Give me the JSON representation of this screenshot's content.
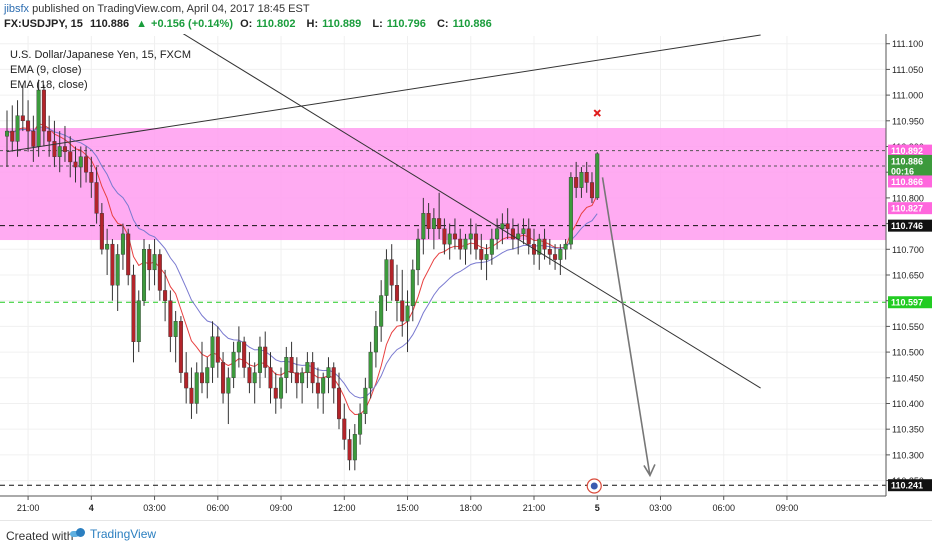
{
  "header": {
    "user": "jibsfx",
    "publish_text": "published on TradingView.com, April 04, 2017 18:45 EST",
    "symbol": "FX:USDJPY, 15",
    "last": "110.886",
    "change_arrow": "▲",
    "change": "+0.156 (+0.14%)",
    "o_label": "O:",
    "o_value": "110.802",
    "h_label": "H:",
    "h_value": "110.889",
    "l_label": "L:",
    "l_value": "110.796",
    "c_label": "C:",
    "c_value": "110.886"
  },
  "legend": {
    "title": "U.S. Dollar/Japanese Yen, 15, FXCM",
    "ema1": "EMA (9, close)",
    "ema2": "EMA (18, close)"
  },
  "footer": {
    "created": "Created with",
    "brand": "TradingView"
  },
  "colors": {
    "up": "#3c9a3c",
    "down": "#b3242a",
    "zone": "#ff9cf0",
    "ema_fast": "#e84040",
    "ema_slow": "#7a7ad0",
    "green_line": "#22cc22",
    "arrow": "#777777",
    "x_marker": "#e01b1b"
  },
  "chart_data": {
    "type": "candlestick",
    "y_range": [
      110.22,
      111.115
    ],
    "y_ticks": [
      "111.100",
      "111.050",
      "111.000",
      "110.950",
      "110.900",
      "110.850",
      "110.800",
      "110.750",
      "110.700",
      "110.650",
      "110.600",
      "110.550",
      "110.500",
      "110.450",
      "110.400",
      "110.350",
      "110.300",
      "110.250"
    ],
    "x_ticks": [
      {
        "label": "21:00",
        "bar": 4
      },
      {
        "label": "4",
        "bar": 16,
        "bold": true
      },
      {
        "label": "03:00",
        "bar": 28
      },
      {
        "label": "06:00",
        "bar": 40
      },
      {
        "label": "09:00",
        "bar": 52
      },
      {
        "label": "12:00",
        "bar": 64
      },
      {
        "label": "15:00",
        "bar": 76
      },
      {
        "label": "18:00",
        "bar": 88
      },
      {
        "label": "21:00",
        "bar": 100
      },
      {
        "label": "5",
        "bar": 112,
        "bold": true
      },
      {
        "label": "03:00",
        "bar": 124
      },
      {
        "label": "06:00",
        "bar": 136
      },
      {
        "label": "09:00",
        "bar": 148
      }
    ],
    "candles": [
      [
        110.92,
        110.97,
        110.86,
        110.93
      ],
      [
        110.93,
        110.98,
        110.89,
        110.91
      ],
      [
        110.91,
        110.99,
        110.88,
        110.96
      ],
      [
        110.96,
        111.02,
        110.93,
        110.95
      ],
      [
        110.95,
        110.99,
        110.89,
        110.93
      ],
      [
        110.93,
        110.96,
        110.87,
        110.9
      ],
      [
        110.9,
        111.03,
        110.88,
        111.01
      ],
      [
        111.01,
        111.02,
        110.9,
        110.93
      ],
      [
        110.93,
        110.96,
        110.88,
        110.91
      ],
      [
        110.91,
        110.95,
        110.86,
        110.88
      ],
      [
        110.88,
        110.93,
        110.85,
        110.9
      ],
      [
        110.9,
        110.94,
        110.87,
        110.89
      ],
      [
        110.89,
        110.92,
        110.84,
        110.87
      ],
      [
        110.87,
        110.9,
        110.83,
        110.86
      ],
      [
        110.86,
        110.9,
        110.82,
        110.88
      ],
      [
        110.88,
        110.9,
        110.83,
        110.85
      ],
      [
        110.85,
        110.88,
        110.8,
        110.83
      ],
      [
        110.83,
        110.86,
        110.75,
        110.77
      ],
      [
        110.77,
        110.79,
        110.69,
        110.7
      ],
      [
        110.7,
        110.74,
        110.65,
        110.71
      ],
      [
        110.71,
        110.72,
        110.6,
        110.63
      ],
      [
        110.63,
        110.71,
        110.58,
        110.69
      ],
      [
        110.69,
        110.75,
        110.66,
        110.73
      ],
      [
        110.73,
        110.74,
        110.63,
        110.65
      ],
      [
        110.65,
        110.67,
        110.48,
        110.52
      ],
      [
        110.52,
        110.62,
        110.5,
        110.6
      ],
      [
        110.6,
        110.72,
        110.59,
        110.7
      ],
      [
        110.7,
        110.71,
        110.62,
        110.66
      ],
      [
        110.66,
        110.72,
        110.63,
        110.69
      ],
      [
        110.69,
        110.7,
        110.6,
        110.62
      ],
      [
        110.62,
        110.66,
        110.56,
        110.6
      ],
      [
        110.6,
        110.62,
        110.5,
        110.53
      ],
      [
        110.53,
        110.58,
        110.48,
        110.56
      ],
      [
        110.56,
        110.57,
        110.44,
        110.46
      ],
      [
        110.46,
        110.5,
        110.4,
        110.43
      ],
      [
        110.43,
        110.47,
        110.37,
        110.4
      ],
      [
        110.4,
        110.48,
        110.38,
        110.46
      ],
      [
        110.46,
        110.52,
        110.42,
        110.44
      ],
      [
        110.44,
        110.49,
        110.41,
        110.47
      ],
      [
        110.47,
        110.56,
        110.44,
        110.53
      ],
      [
        110.53,
        110.55,
        110.45,
        110.48
      ],
      [
        110.48,
        110.5,
        110.4,
        110.42
      ],
      [
        110.42,
        110.47,
        110.36,
        110.45
      ],
      [
        110.45,
        110.52,
        110.43,
        110.5
      ],
      [
        110.5,
        110.55,
        110.47,
        110.52
      ],
      [
        110.52,
        110.53,
        110.45,
        110.47
      ],
      [
        110.47,
        110.5,
        110.42,
        110.44
      ],
      [
        110.44,
        110.48,
        110.4,
        110.46
      ],
      [
        110.46,
        110.53,
        110.43,
        110.51
      ],
      [
        110.51,
        110.54,
        110.45,
        110.47
      ],
      [
        110.47,
        110.5,
        110.4,
        110.43
      ],
      [
        110.43,
        110.46,
        110.38,
        110.41
      ],
      [
        110.41,
        110.47,
        110.39,
        110.45
      ],
      [
        110.45,
        110.51,
        110.42,
        110.49
      ],
      [
        110.49,
        110.52,
        110.44,
        110.46
      ],
      [
        110.46,
        110.49,
        110.41,
        110.44
      ],
      [
        110.44,
        110.47,
        110.4,
        110.46
      ],
      [
        110.46,
        110.5,
        110.43,
        110.48
      ],
      [
        110.48,
        110.5,
        110.42,
        110.44
      ],
      [
        110.44,
        110.47,
        110.39,
        110.42
      ],
      [
        110.42,
        110.46,
        110.38,
        110.45
      ],
      [
        110.45,
        110.49,
        110.42,
        110.47
      ],
      [
        110.47,
        110.48,
        110.4,
        110.43
      ],
      [
        110.43,
        110.46,
        110.35,
        110.37
      ],
      [
        110.37,
        110.4,
        110.31,
        110.33
      ],
      [
        110.33,
        110.35,
        110.27,
        110.29
      ],
      [
        110.29,
        110.36,
        110.27,
        110.34
      ],
      [
        110.34,
        110.4,
        110.32,
        110.38
      ],
      [
        110.38,
        110.45,
        110.36,
        110.43
      ],
      [
        110.43,
        110.52,
        110.41,
        110.5
      ],
      [
        110.5,
        110.58,
        110.47,
        110.55
      ],
      [
        110.55,
        110.64,
        110.52,
        110.61
      ],
      [
        110.61,
        110.7,
        110.58,
        110.68
      ],
      [
        110.68,
        110.71,
        110.6,
        110.63
      ],
      [
        110.63,
        110.67,
        110.56,
        110.6
      ],
      [
        110.6,
        110.66,
        110.53,
        110.56
      ],
      [
        110.56,
        110.62,
        110.5,
        110.59
      ],
      [
        110.59,
        110.68,
        110.56,
        110.66
      ],
      [
        110.66,
        110.74,
        110.63,
        110.72
      ],
      [
        110.72,
        110.8,
        110.69,
        110.77
      ],
      [
        110.77,
        110.79,
        110.72,
        110.74
      ],
      [
        110.74,
        110.78,
        110.7,
        110.76
      ],
      [
        110.76,
        110.81,
        110.72,
        110.74
      ],
      [
        110.74,
        110.76,
        110.69,
        110.71
      ],
      [
        110.71,
        110.75,
        110.68,
        110.73
      ],
      [
        110.73,
        110.76,
        110.7,
        110.72
      ],
      [
        110.72,
        110.74,
        110.68,
        110.7
      ],
      [
        110.7,
        110.73,
        110.67,
        110.72
      ],
      [
        110.72,
        110.76,
        110.69,
        110.73
      ],
      [
        110.73,
        110.75,
        110.68,
        110.7
      ],
      [
        110.7,
        110.73,
        110.66,
        110.68
      ],
      [
        110.68,
        110.71,
        110.64,
        110.69
      ],
      [
        110.69,
        110.74,
        110.67,
        110.72
      ],
      [
        110.72,
        110.76,
        110.7,
        110.74
      ],
      [
        110.74,
        110.77,
        110.71,
        110.75
      ],
      [
        110.75,
        110.78,
        110.72,
        110.74
      ],
      [
        110.74,
        110.76,
        110.7,
        110.72
      ],
      [
        110.72,
        110.75,
        110.69,
        110.73
      ],
      [
        110.73,
        110.76,
        110.71,
        110.74
      ],
      [
        110.74,
        110.76,
        110.69,
        110.71
      ],
      [
        110.71,
        110.74,
        110.67,
        110.69
      ],
      [
        110.69,
        110.73,
        110.66,
        110.72
      ],
      [
        110.72,
        110.74,
        110.68,
        110.7
      ],
      [
        110.7,
        110.72,
        110.67,
        110.69
      ],
      [
        110.69,
        110.71,
        110.66,
        110.68
      ],
      [
        110.68,
        110.71,
        110.65,
        110.7
      ],
      [
        110.7,
        110.72,
        110.68,
        110.71
      ],
      [
        110.71,
        110.85,
        110.7,
        110.84
      ],
      [
        110.84,
        110.87,
        110.8,
        110.82
      ],
      [
        110.82,
        110.86,
        110.8,
        110.85
      ],
      [
        110.85,
        110.87,
        110.81,
        110.83
      ],
      [
        110.83,
        110.85,
        110.79,
        110.8
      ],
      [
        110.8,
        110.889,
        110.796,
        110.886
      ]
    ],
    "resistance_zone": [
      110.718,
      110.936
    ],
    "levels": [
      {
        "price": 110.892,
        "style": "dash",
        "color": "#555555"
      },
      {
        "price": 110.862,
        "style": "dash",
        "color": "#555555"
      },
      {
        "price": 110.746,
        "style": "dash",
        "color": "#111111"
      },
      {
        "price": 110.597,
        "style": "dash",
        "color": "#22cc22"
      },
      {
        "price": 110.241,
        "style": "dash",
        "color": "#111111"
      }
    ],
    "price_labels": [
      {
        "text": "110.892",
        "price": 110.892,
        "bg": "#ff66dd",
        "fg": "#ffffff"
      },
      {
        "text": "110.886",
        "price": 110.872,
        "bg": "#3c9a3c",
        "fg": "#ffffff"
      },
      {
        "text": "00:16",
        "price": 110.852,
        "bg": "#3c9a3c",
        "fg": "#ffffff"
      },
      {
        "text": "110.866",
        "price": 110.832,
        "bg": "#ff66dd",
        "fg": "#ffffff"
      },
      {
        "text": "110.827",
        "price": 110.78,
        "bg": "#ff66dd",
        "fg": "#ffffff"
      },
      {
        "text": "110.746",
        "price": 110.746,
        "bg": "#111111",
        "fg": "#ffffff"
      },
      {
        "text": "110.597",
        "price": 110.597,
        "bg": "#22cc22",
        "fg": "#ffffff"
      },
      {
        "text": "110.241",
        "price": 110.241,
        "bg": "#111111",
        "fg": "#ffffff"
      }
    ],
    "trendlines": [
      {
        "from": [
          0,
          110.89
        ],
        "to": [
          143,
          111.117
        ]
      },
      {
        "from": [
          27,
          111.16
        ],
        "to": [
          143,
          110.43
        ]
      },
      {
        "from": [
          113,
          110.84
        ],
        "to": [
          122,
          110.26
        ]
      }
    ],
    "x_marker": {
      "bar": 112,
      "price": 110.965
    },
    "grid": true
  }
}
